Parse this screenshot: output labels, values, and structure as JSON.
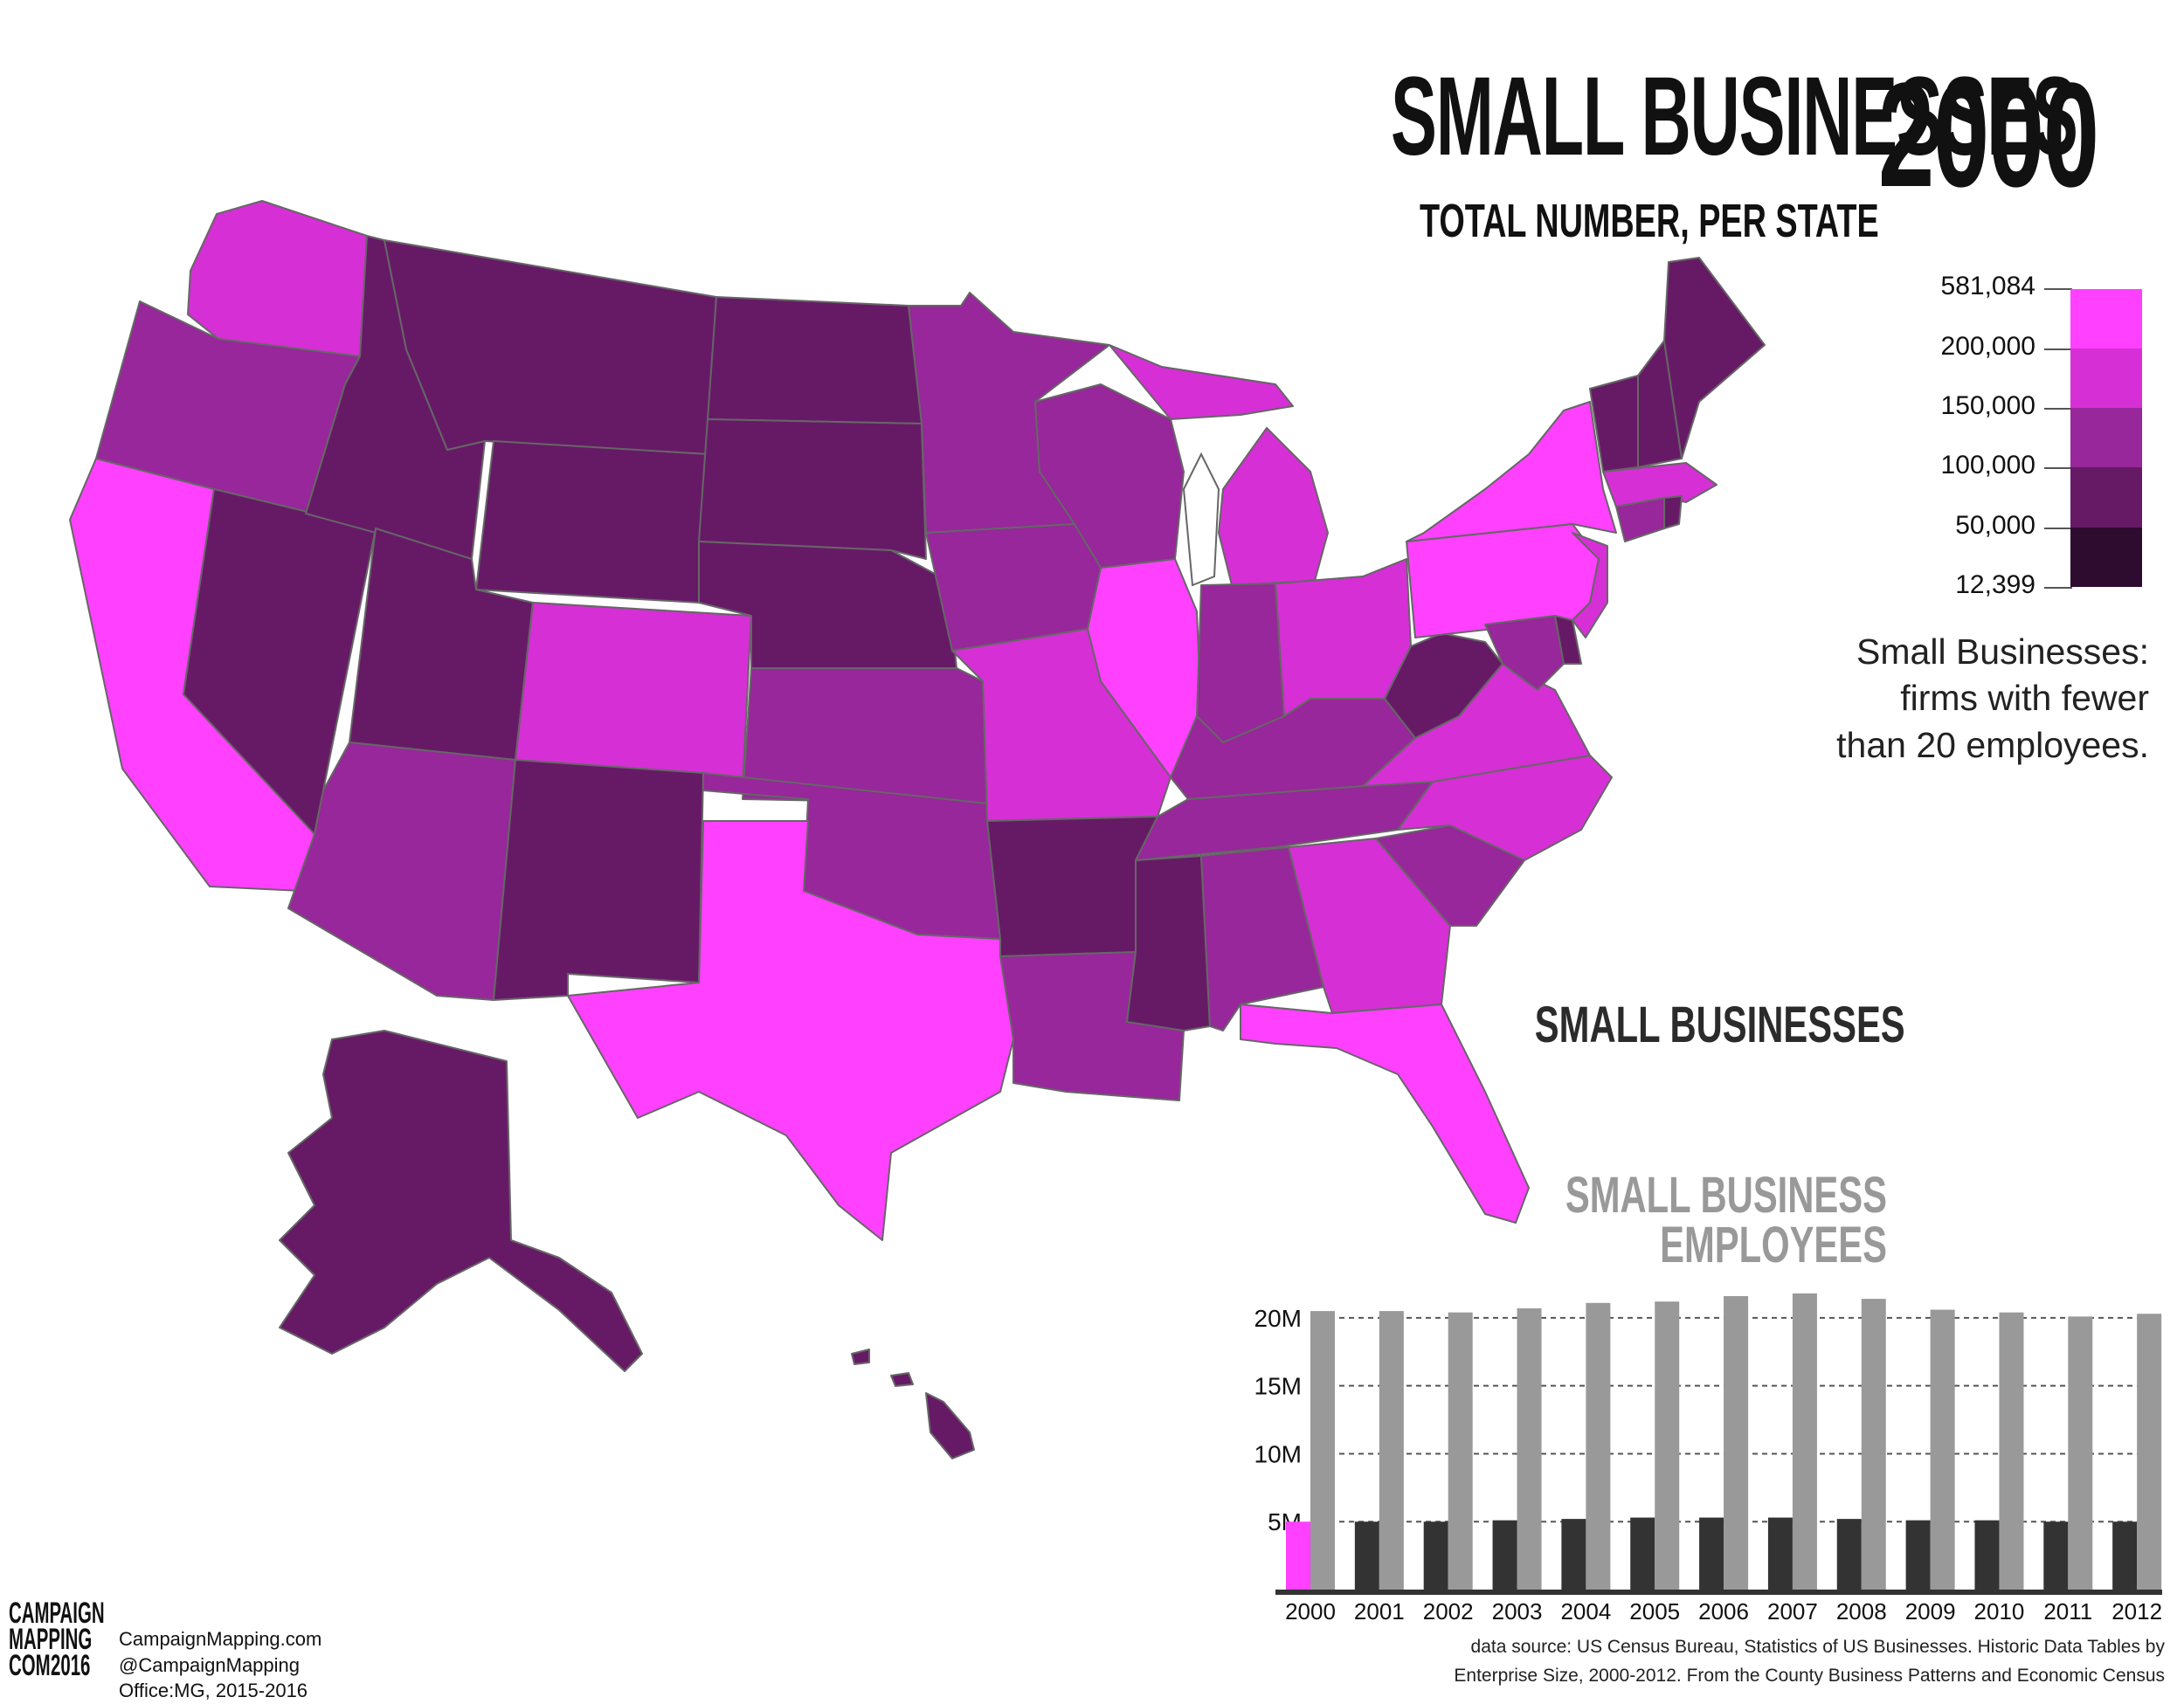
{
  "header": {
    "title": "SMALL BUSINESSES",
    "year": "2000",
    "subtitle": "TOTAL NUMBER, PER STATE"
  },
  "legend": {
    "labels": [
      "581,084",
      "200,000",
      "150,000",
      "100,000",
      "50,000",
      "12,399"
    ],
    "colors": [
      "#ff40ff",
      "#d62fd6",
      "#97279a",
      "#661a66",
      "#2e0c30"
    ]
  },
  "note": {
    "line1": "Small Businesses:",
    "line2": "firms with fewer",
    "line3": "than 20 employees."
  },
  "chart_labels": {
    "small_businesses": "SMALL  BUSINESSES",
    "employees_line1": "SMALL  BUSINESS",
    "employees_line2": "EMPLOYEES"
  },
  "chart_data": {
    "type": "bar",
    "categories": [
      "2000",
      "2001",
      "2002",
      "2003",
      "2004",
      "2005",
      "2006",
      "2007",
      "2008",
      "2009",
      "2010",
      "2011",
      "2012"
    ],
    "y_ticks": [
      "5M",
      "10M",
      "15M",
      "20M"
    ],
    "ylim": [
      0,
      22500000
    ],
    "highlight_index": 0,
    "series": [
      {
        "name": "SMALL  BUSINESSES",
        "color": "#333333",
        "highlight_color": "#ff40ff",
        "values": [
          5000000,
          5000000,
          5000000,
          5100000,
          5200000,
          5300000,
          5300000,
          5300000,
          5200000,
          5100000,
          5100000,
          5000000,
          5000000
        ]
      },
      {
        "name": "SMALL BUSINESS EMPLOYEES",
        "color": "#999999",
        "values": [
          20500000,
          20500000,
          20400000,
          20700000,
          21100000,
          21200000,
          21600000,
          21800000,
          21400000,
          20600000,
          20400000,
          20100000,
          20300000
        ]
      }
    ]
  },
  "source": {
    "line1": "data source: US Census Bureau, Statistics of US Businesses. Historic Data Tables by",
    "line2": "Enterprise Size, 2000-2012. From the County Business Patterns and Economic Census"
  },
  "logo": {
    "line1": "CAMPAIGN",
    "line2": "MAPPING",
    "line3": "COM",
    "year": "2016"
  },
  "credits": {
    "site": "CampaignMapping.com",
    "handle": "@CampaignMapping",
    "office": "Office:MG, 2015-2016"
  },
  "map_states": [
    {
      "state": "Washington",
      "tier": 3
    },
    {
      "state": "Oregon",
      "tier": 2
    },
    {
      "state": "California",
      "tier": 4
    },
    {
      "state": "Nevada",
      "tier": 1
    },
    {
      "state": "Idaho",
      "tier": 1
    },
    {
      "state": "Montana",
      "tier": 1
    },
    {
      "state": "Wyoming",
      "tier": 1
    },
    {
      "state": "Utah",
      "tier": 1
    },
    {
      "state": "Arizona",
      "tier": 2
    },
    {
      "state": "Colorado",
      "tier": 3
    },
    {
      "state": "New Mexico",
      "tier": 1
    },
    {
      "state": "North Dakota",
      "tier": 1
    },
    {
      "state": "South Dakota",
      "tier": 1
    },
    {
      "state": "Nebraska",
      "tier": 1
    },
    {
      "state": "Kansas",
      "tier": 2
    },
    {
      "state": "Oklahoma",
      "tier": 2
    },
    {
      "state": "Texas",
      "tier": 4
    },
    {
      "state": "Minnesota",
      "tier": 2
    },
    {
      "state": "Iowa",
      "tier": 2
    },
    {
      "state": "Missouri",
      "tier": 3
    },
    {
      "state": "Arkansas",
      "tier": 1
    },
    {
      "state": "Louisiana",
      "tier": 2
    },
    {
      "state": "Wisconsin",
      "tier": 2
    },
    {
      "state": "Illinois",
      "tier": 4
    },
    {
      "state": "Michigan",
      "tier": 3
    },
    {
      "state": "Indiana",
      "tier": 2
    },
    {
      "state": "Ohio",
      "tier": 3
    },
    {
      "state": "Kentucky",
      "tier": 2
    },
    {
      "state": "Tennessee",
      "tier": 2
    },
    {
      "state": "Mississippi",
      "tier": 1
    },
    {
      "state": "Alabama",
      "tier": 2
    },
    {
      "state": "Georgia",
      "tier": 3
    },
    {
      "state": "Florida",
      "tier": 4
    },
    {
      "state": "South Carolina",
      "tier": 2
    },
    {
      "state": "North Carolina",
      "tier": 3
    },
    {
      "state": "Virginia",
      "tier": 3
    },
    {
      "state": "West Virginia",
      "tier": 1
    },
    {
      "state": "Pennsylvania",
      "tier": 4
    },
    {
      "state": "New York",
      "tier": 4
    },
    {
      "state": "New Jersey",
      "tier": 3
    },
    {
      "state": "Maryland",
      "tier": 2
    },
    {
      "state": "Delaware",
      "tier": 1
    },
    {
      "state": "Connecticut",
      "tier": 2
    },
    {
      "state": "Massachusetts",
      "tier": 3
    },
    {
      "state": "Rhode Island",
      "tier": 1
    },
    {
      "state": "Vermont",
      "tier": 1
    },
    {
      "state": "New Hampshire",
      "tier": 1
    },
    {
      "state": "Maine",
      "tier": 1
    },
    {
      "state": "Alaska",
      "tier": 1
    },
    {
      "state": "Hawaii",
      "tier": 1
    }
  ]
}
